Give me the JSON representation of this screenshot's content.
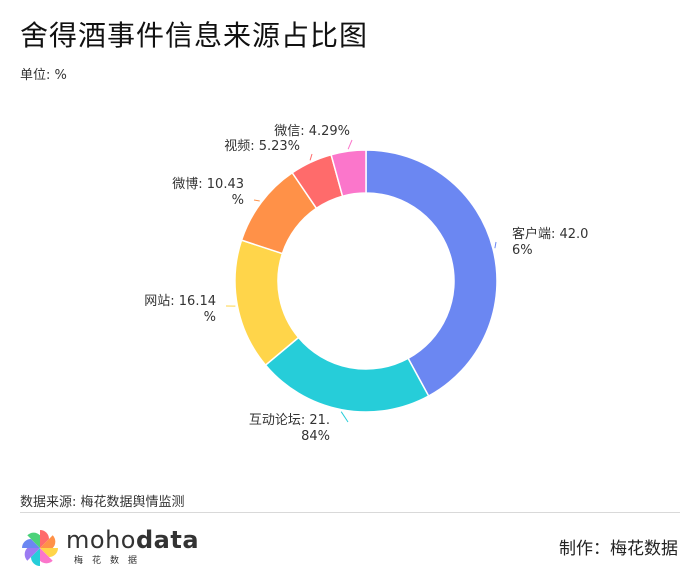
{
  "title": "舍得酒事件信息来源占比图",
  "unit_label": "单位: %",
  "source_label": "数据来源: 梅花数据舆情监测",
  "brand": {
    "prefix": "moho",
    "bold": "data",
    "sub": "梅花数据"
  },
  "maker_label": "制作：梅花数据",
  "chart_data": {
    "type": "pie",
    "donut": true,
    "unit": "%",
    "categories": [
      "客户端",
      "互动论坛",
      "网站",
      "微博",
      "视频",
      "微信"
    ],
    "values": [
      42.06,
      21.84,
      16.14,
      10.43,
      5.23,
      4.29
    ],
    "labels": [
      [
        "客户端: 42.0",
        "6%"
      ],
      [
        "互动论坛: 21.",
        "84%"
      ],
      [
        "网站: 16.14",
        "%"
      ],
      [
        "微博: 10.43",
        "%"
      ],
      [
        "视频: 5.23%"
      ],
      [
        "微信: 4.29%"
      ]
    ],
    "colors": [
      "#6b87f2",
      "#26cdd9",
      "#ffd54a",
      "#ff9148",
      "#ff6b6b",
      "#fb76cb"
    ],
    "legend": "none"
  }
}
